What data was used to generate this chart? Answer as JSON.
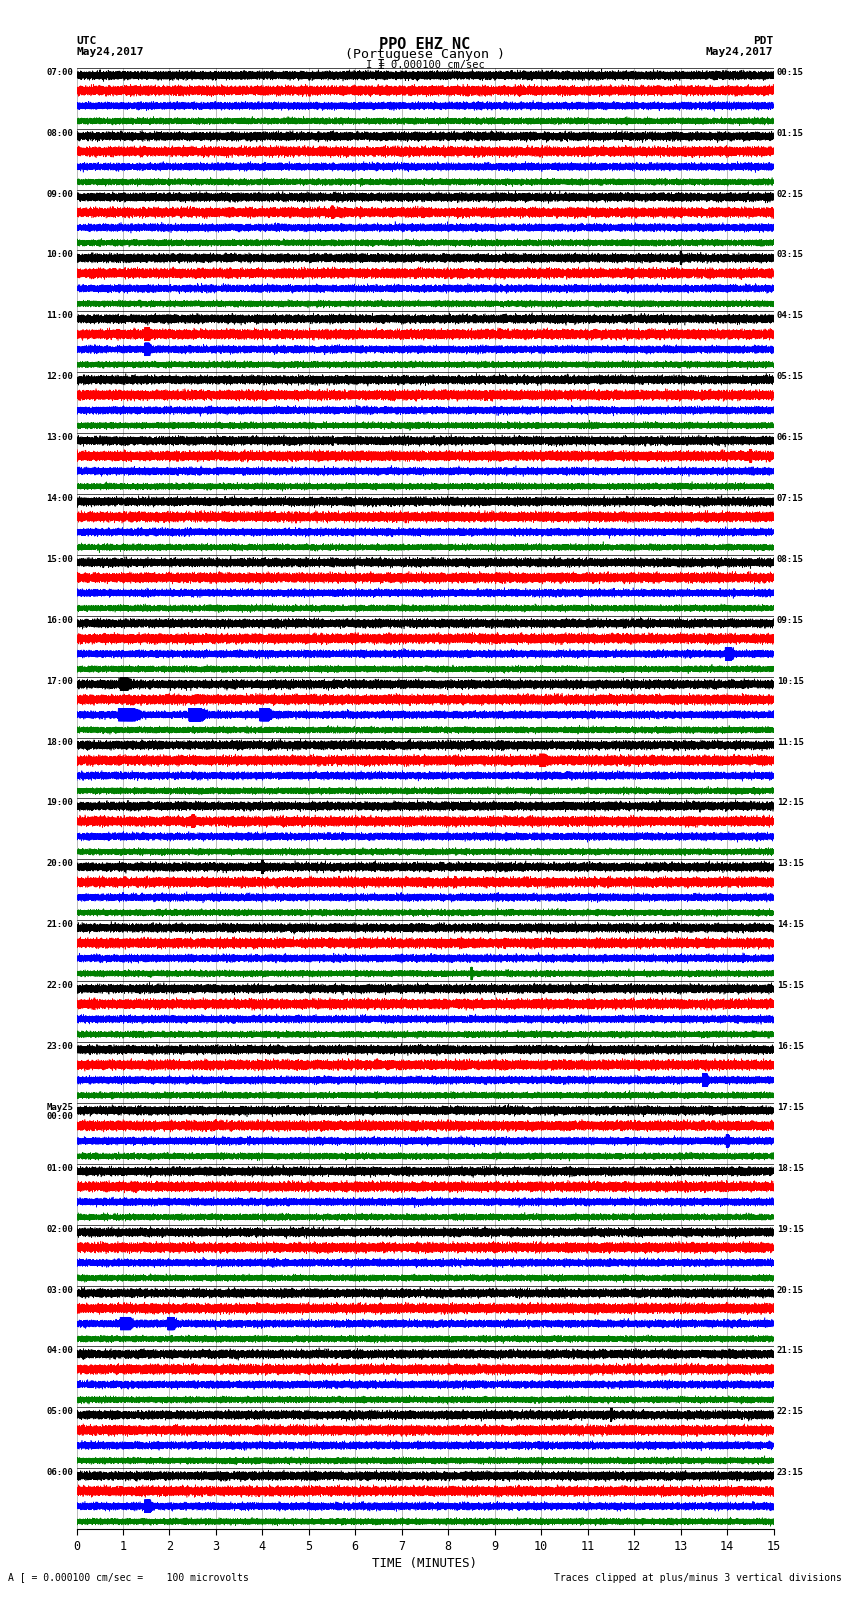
{
  "title_line1": "PPO EHZ NC",
  "title_line2": "(Portuguese Canyon )",
  "scale_label": "I = 0.000100 cm/sec",
  "utc_label": "UTC",
  "utc_date": "May24,2017",
  "pdt_label": "PDT",
  "pdt_date": "May24,2017",
  "bottom_left": "A [ = 0.000100 cm/sec =    100 microvolts",
  "bottom_right": "Traces clipped at plus/minus 3 vertical divisions",
  "xlabel": "TIME (MINUTES)",
  "left_times": [
    "07:00",
    "08:00",
    "09:00",
    "10:00",
    "11:00",
    "12:00",
    "13:00",
    "14:00",
    "15:00",
    "16:00",
    "17:00",
    "18:00",
    "19:00",
    "20:00",
    "21:00",
    "22:00",
    "23:00",
    "May25\n00:00",
    "01:00",
    "02:00",
    "03:00",
    "04:00",
    "05:00",
    "06:00"
  ],
  "right_times": [
    "00:15",
    "01:15",
    "02:15",
    "03:15",
    "04:15",
    "05:15",
    "06:15",
    "07:15",
    "08:15",
    "09:15",
    "10:15",
    "11:15",
    "12:15",
    "13:15",
    "14:15",
    "15:15",
    "16:15",
    "17:15",
    "18:15",
    "19:15",
    "20:15",
    "21:15",
    "22:15",
    "23:15"
  ],
  "n_rows": 24,
  "traces_per_row": 4,
  "colors": [
    "black",
    "red",
    "blue",
    "green"
  ],
  "bg_color": "#ffffff",
  "time_minutes": 15,
  "fig_width": 8.5,
  "fig_height": 16.13
}
